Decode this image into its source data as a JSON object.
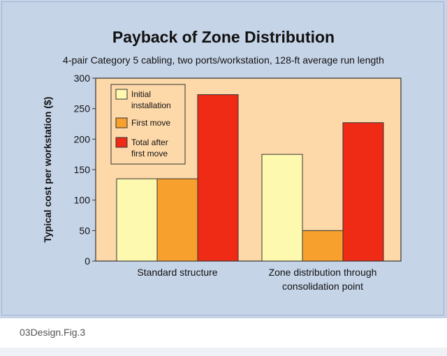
{
  "chart_data": {
    "type": "bar",
    "title": "Payback of Zone Distribution",
    "subtitle": "4-pair Category 5 cabling, two ports/workstation, 128-ft average run length",
    "ylabel": "Typical cost per workstation ($)",
    "xlabel": "",
    "ylim": [
      0,
      300
    ],
    "yticks": [
      0,
      50,
      100,
      150,
      200,
      250,
      300
    ],
    "categories": [
      [
        "Standard structure"
      ],
      [
        "Zone distribution through",
        "consolidation point"
      ]
    ],
    "series": [
      {
        "name": "Initial installation",
        "legend_lines": [
          "Initial",
          "installation"
        ],
        "color": "#fdfab0",
        "values": [
          135,
          175
        ]
      },
      {
        "name": "First move",
        "legend_lines": [
          "First move"
        ],
        "color": "#f7a02d",
        "values": [
          135,
          50
        ]
      },
      {
        "name": "Total after first move",
        "legend_lines": [
          "Total after",
          "first move"
        ],
        "color": "#ef2b16",
        "values": [
          273,
          227
        ]
      }
    ],
    "plot_background": "#fdd8a8",
    "legend_position": "top-left"
  },
  "footer": {
    "caption": "03Design.Fig.3"
  }
}
